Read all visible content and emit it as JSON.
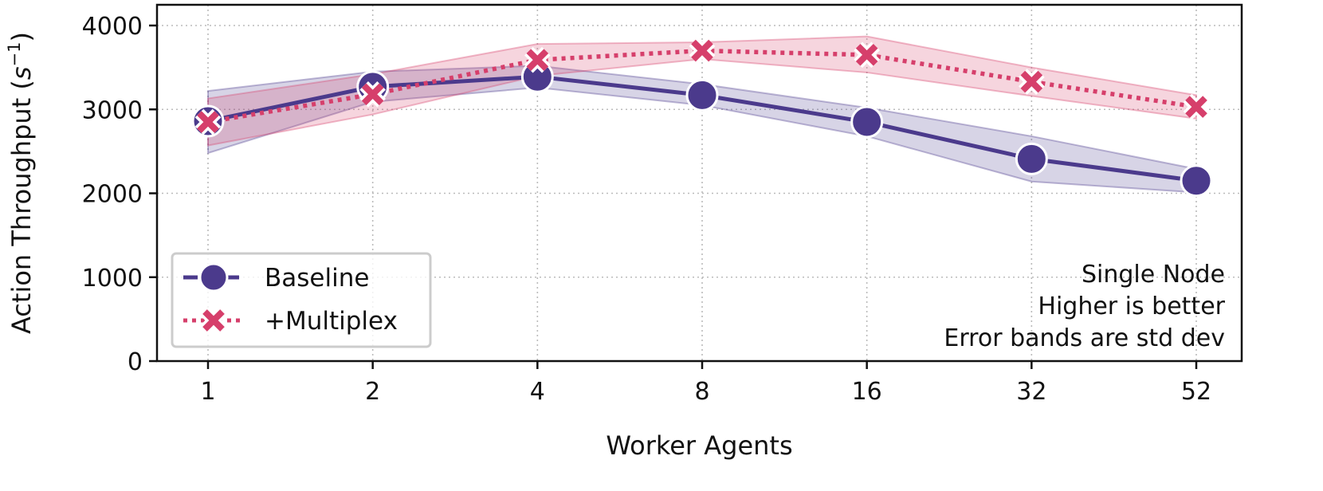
{
  "chart_data": {
    "type": "line",
    "title": "",
    "xlabel": "Worker Agents",
    "ylabel": "Action Throughput (s⁻¹)",
    "x_scale": "log2-categorical",
    "categories": [
      "1",
      "2",
      "4",
      "8",
      "16",
      "32",
      "52"
    ],
    "ylim": [
      0,
      4000
    ],
    "yticks": [
      "0",
      "1000",
      "2000",
      "3000",
      "4000"
    ],
    "grid": true,
    "legend_position": "lower-left",
    "series": [
      {
        "name": "Baseline",
        "marker": "circle",
        "line_style": "solid",
        "color": "#4b3a8c",
        "values": [
          2860,
          3270,
          3390,
          3170,
          2850,
          2410,
          2150
        ],
        "band_low": [
          2480,
          3090,
          3260,
          3050,
          2680,
          2140,
          2010
        ],
        "band_high": [
          3220,
          3450,
          3520,
          3300,
          3020,
          2680,
          2290
        ]
      },
      {
        "name": "+Multiplex",
        "marker": "x",
        "line_style": "dotted",
        "color": "#d63f6b",
        "values": [
          2850,
          3180,
          3590,
          3700,
          3650,
          3330,
          3030
        ],
        "band_low": [
          2570,
          2940,
          3400,
          3600,
          3440,
          3160,
          2890
        ],
        "band_high": [
          3130,
          3420,
          3780,
          3800,
          3870,
          3500,
          3170
        ]
      }
    ],
    "annotations": [
      "Single Node",
      "Higher is better",
      "Error bands are std dev"
    ]
  }
}
